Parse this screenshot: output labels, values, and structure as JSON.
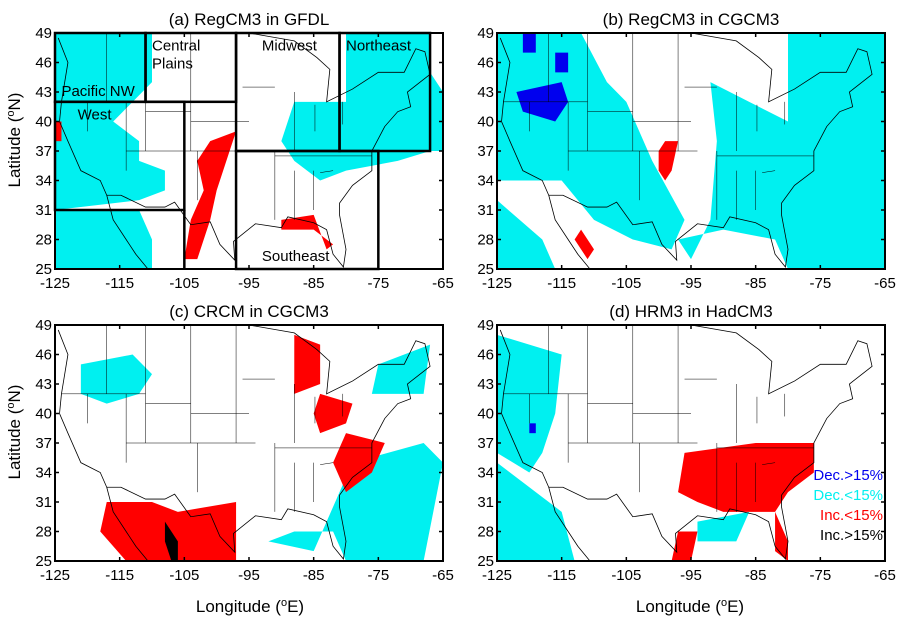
{
  "figure": {
    "ylabel": "Latitude (°N)",
    "ylabel_main": "Latitude (",
    "ylabel_sup": "o",
    "ylabel_end": "N)",
    "xlabel_main": "Longitude (",
    "xlabel_sup": "o",
    "xlabel_end": "E)",
    "lat_ticks": [
      "49",
      "46",
      "43",
      "40",
      "37",
      "34",
      "31",
      "28",
      "25"
    ],
    "lon_ticks": [
      "-125",
      "-115",
      "-105",
      "-95",
      "-85",
      "-75",
      "-65"
    ]
  },
  "colors": {
    "dec_gt15": "#0000ee",
    "dec_lt15": "#00f0f0",
    "inc_lt15": "#ff0000",
    "inc_gt15": "#000000"
  },
  "panels": [
    {
      "title": "(a) RegCM3 in GFDL"
    },
    {
      "title": "(b) RegCM3 in CGCM3"
    },
    {
      "title": "(c) CRCM in CGCM3"
    },
    {
      "title": "(d) HRM3 in HadCM3"
    }
  ],
  "regions": {
    "pacific_nw": "Pacific NW",
    "west": "West",
    "central_plains_1": "Central",
    "central_plains_2": "Plains",
    "midwest": "Midwest",
    "northeast": "Northeast",
    "southeast": "Southeast"
  },
  "legend": [
    {
      "label": "Dec.>15%",
      "color": "#0000ee"
    },
    {
      "label": "Dec.<15%",
      "color": "#00f0f0"
    },
    {
      "label": "Inc.<15%",
      "color": "#ff0000"
    },
    {
      "label": "Inc.>15%",
      "color": "#000000"
    }
  ]
}
